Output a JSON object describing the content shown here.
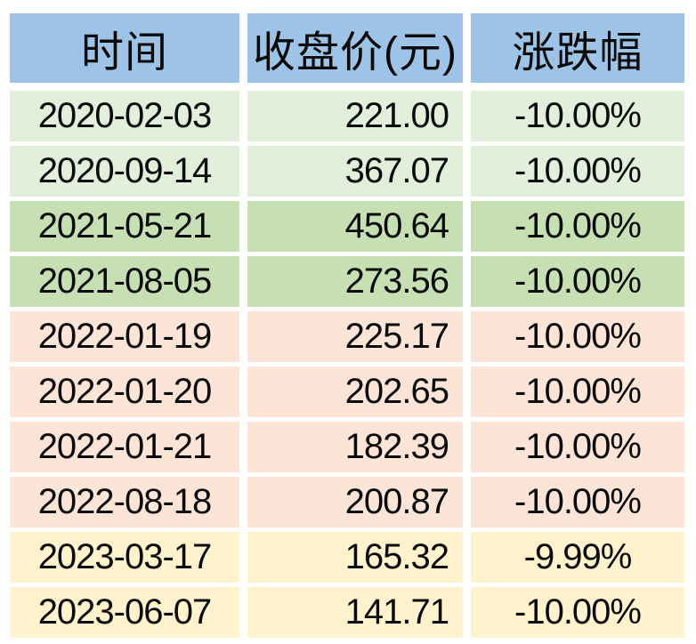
{
  "chart_data": {
    "type": "table",
    "columns": [
      "时间",
      "收盘价(元)",
      "涨跌幅"
    ],
    "rows": [
      [
        "2020-02-03",
        "221.00",
        "-10.00%"
      ],
      [
        "2020-09-14",
        "367.07",
        "-10.00%"
      ],
      [
        "2021-05-21",
        "450.64",
        "-10.00%"
      ],
      [
        "2021-08-05",
        "273.56",
        "-10.00%"
      ],
      [
        "2022-01-19",
        "225.17",
        "-10.00%"
      ],
      [
        "2022-01-20",
        "202.65",
        "-10.00%"
      ],
      [
        "2022-01-21",
        "182.39",
        "-10.00%"
      ],
      [
        "2022-08-18",
        "200.87",
        "-10.00%"
      ],
      [
        "2023-03-17",
        "165.32",
        "-9.99%"
      ],
      [
        "2023-06-07",
        "141.71",
        "-10.00%"
      ]
    ]
  },
  "colors": {
    "page_bg": "#ffffff",
    "header_bg": "#9dc3e6",
    "text": "#0a0a0a",
    "row_bgs": [
      "#e2efda",
      "#e2efda",
      "#c6e0b4",
      "#c6e0b4",
      "#fce4d6",
      "#fce4d6",
      "#fce4d6",
      "#fce4d6",
      "#fff2cc",
      "#fff2cc"
    ],
    "year_group_colors": {
      "2020": "#e2efda",
      "2021": "#c6e0b4",
      "2022": "#fce4d6",
      "2023": "#fff2cc"
    }
  }
}
